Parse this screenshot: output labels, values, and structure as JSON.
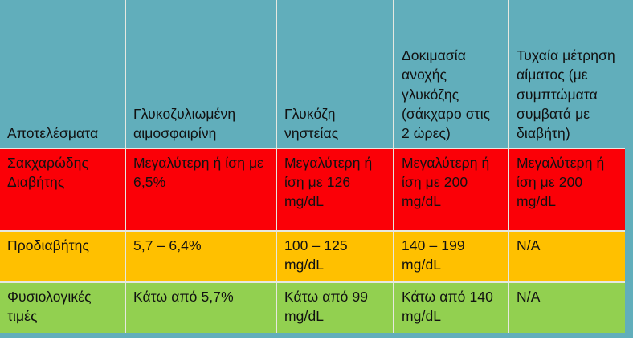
{
  "table": {
    "title": "Diabetes diagnostic criteria table (Greek)",
    "headers": [
      "Αποτελέσματα",
      "Γλυκοζυλιωμένη αιμοσφαιρίνη",
      "Γλυκόζη νηστείας",
      "Δοκιμασία ανοχής γλυκόζης (σάκχαρο στις 2 ώρες)",
      "Τυχαία μέτρηση αίματος (με συμπτώματα συμβατά με διαβήτη)"
    ],
    "rows": [
      {
        "label": "Σακχαρώδης Διαβήτης",
        "cells": [
          "Μεγαλύτερη ή ίση με 6,5%",
          "Μεγαλύτερη ή ίση με 126 mg/dL",
          "Μεγαλύτερη ή ίση με 200 mg/dL",
          "Μεγαλύτερη ή ίση με 200 mg/dL"
        ]
      },
      {
        "label": "Προδιαβήτης",
        "cells": [
          "5,7 – 6,4%",
          "100 – 125 mg/dL",
          "140 – 199 mg/dL",
          "N/A"
        ]
      },
      {
        "label": "Φυσιολογικές τιμές",
        "cells": [
          "Κάτω από 5,7%",
          "Κάτω από 99 mg/dL",
          "Κάτω από 140 mg/dL",
          "N/A"
        ]
      }
    ]
  },
  "colors": {
    "header_teal": "#61AEBB",
    "diabetes_red": "#FB0007",
    "prediabetes_orange": "#FFC000",
    "normal_green": "#92D050",
    "gridline": "#E6E8E0",
    "text": "#111111"
  }
}
